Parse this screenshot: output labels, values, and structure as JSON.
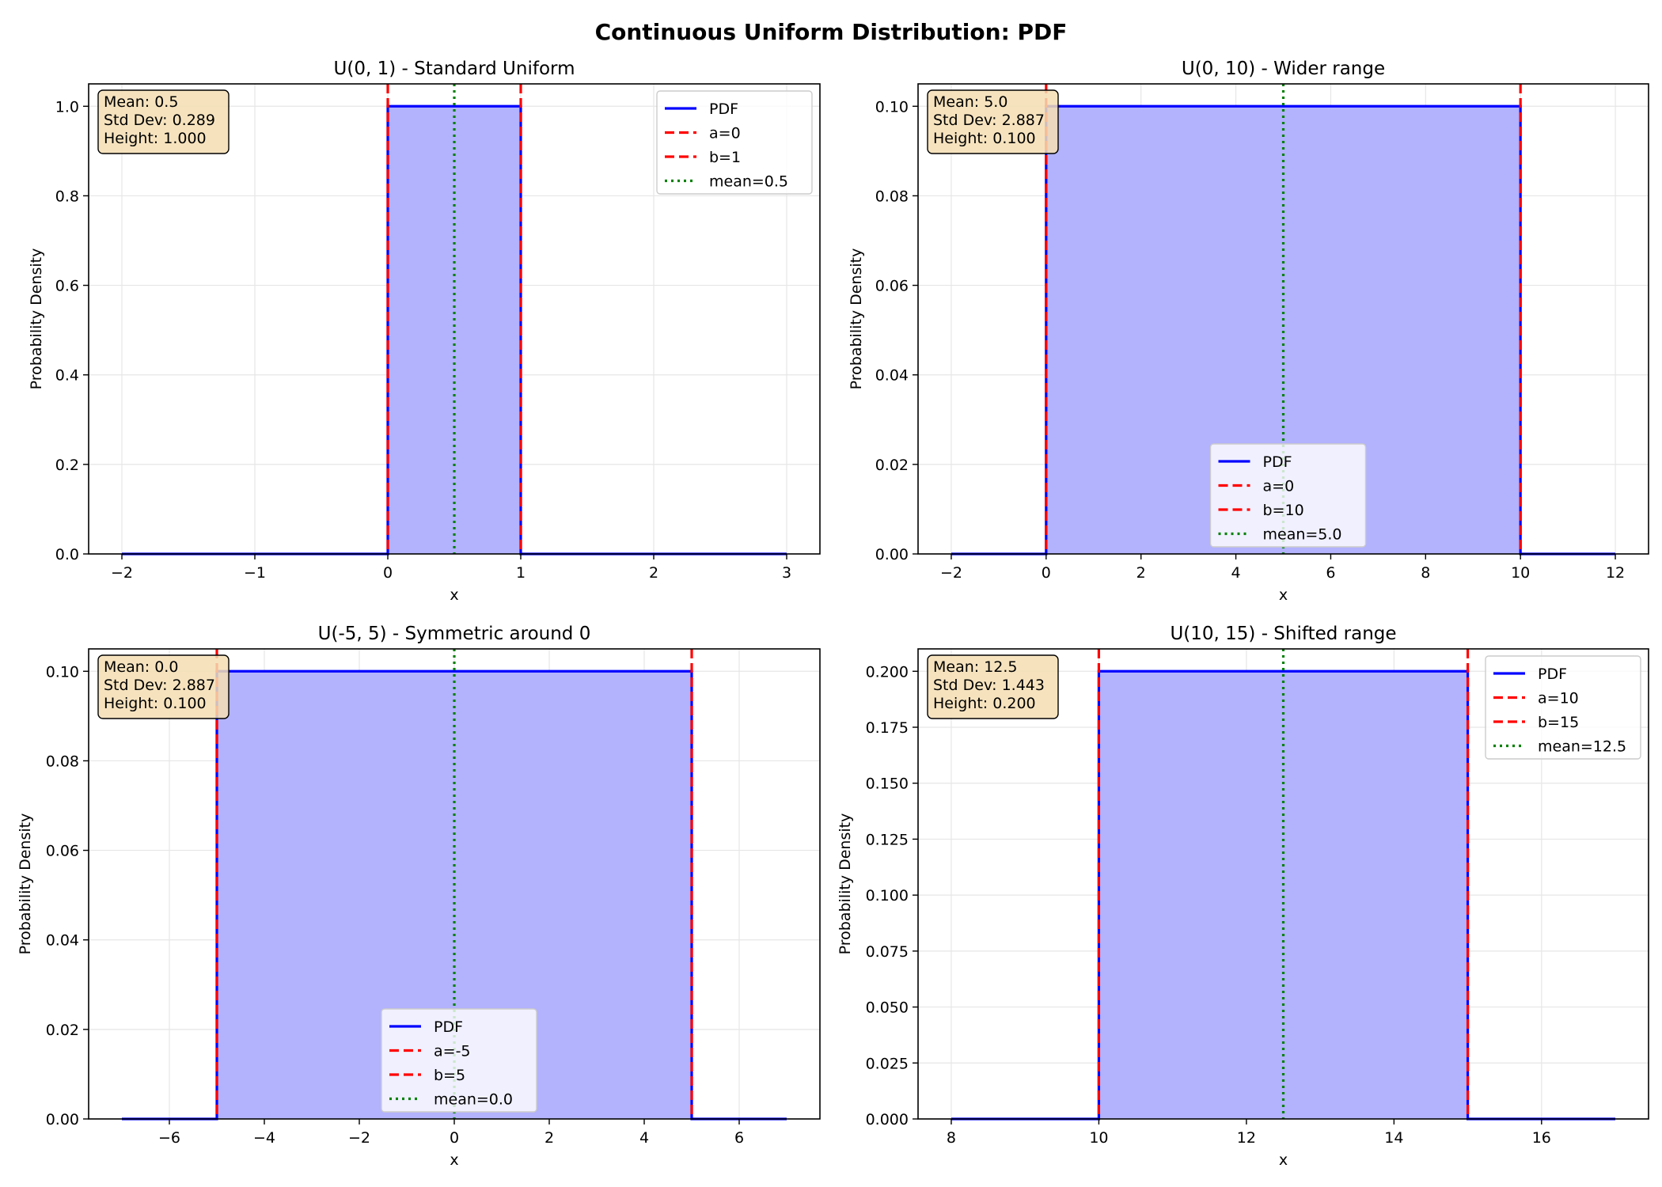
{
  "figure": {
    "title": "Continuous Uniform Distribution: PDF"
  },
  "colors": {
    "pdf_line": "#0000ff",
    "fill": "#b2b2fd",
    "bound_line": "#ff0000",
    "mean_line": "#008000",
    "grid": "#e6e6e6",
    "info_box_bg": "#f5deb3",
    "legend_bg": "#ffffff"
  },
  "chart_data": [
    {
      "type": "line",
      "title": "U(0, 1) - Standard Uniform",
      "xlabel": "x",
      "ylabel": "Probability Density",
      "xlim": [
        -2.25,
        3.25
      ],
      "ylim": [
        0,
        1.05
      ],
      "xticks": [
        -2,
        -1,
        0,
        1,
        2,
        3
      ],
      "xtick_labels": [
        "−2",
        "−1",
        "0",
        "1",
        "2",
        "3"
      ],
      "yticks": [
        0,
        0.2,
        0.4,
        0.6,
        0.8,
        1.0
      ],
      "ytick_labels": [
        "0.0",
        "0.2",
        "0.4",
        "0.6",
        "0.8",
        "1.0"
      ],
      "grid": true,
      "legend_position": "upper right",
      "pdf": {
        "x": [
          -2,
          0,
          0,
          1,
          1,
          3
        ],
        "y": [
          0,
          0,
          1.0,
          1.0,
          0,
          0
        ]
      },
      "a": 0,
      "b": 1,
      "mean": 0.5,
      "height": 1.0,
      "info": [
        "Mean: 0.5",
        "Std Dev: 0.289",
        "Height: 1.000"
      ],
      "legend": [
        "PDF",
        "a=0",
        "b=1",
        "mean=0.5"
      ]
    },
    {
      "type": "line",
      "title": "U(0, 10) - Wider range",
      "xlabel": "x",
      "ylabel": "Probability Density",
      "xlim": [
        -2.7,
        12.7
      ],
      "ylim": [
        0,
        0.105
      ],
      "xticks": [
        -2,
        0,
        2,
        4,
        6,
        8,
        10,
        12
      ],
      "xtick_labels": [
        "−2",
        "0",
        "2",
        "4",
        "6",
        "8",
        "10",
        "12"
      ],
      "yticks": [
        0,
        0.02,
        0.04,
        0.06,
        0.08,
        0.1
      ],
      "ytick_labels": [
        "0.00",
        "0.02",
        "0.04",
        "0.06",
        "0.08",
        "0.10"
      ],
      "grid": true,
      "legend_position": "lower center",
      "pdf": {
        "x": [
          -2,
          0,
          0,
          10,
          10,
          12
        ],
        "y": [
          0,
          0,
          0.1,
          0.1,
          0,
          0
        ]
      },
      "a": 0,
      "b": 10,
      "mean": 5.0,
      "height": 0.1,
      "info": [
        "Mean: 5.0",
        "Std Dev: 2.887",
        "Height: 0.100"
      ],
      "legend": [
        "PDF",
        "a=0",
        "b=10",
        "mean=5.0"
      ]
    },
    {
      "type": "line",
      "title": "U(-5, 5) - Symmetric around 0",
      "xlabel": "x",
      "ylabel": "Probability Density",
      "xlim": [
        -7.7,
        7.7
      ],
      "ylim": [
        0,
        0.105
      ],
      "xticks": [
        -6,
        -4,
        -2,
        0,
        2,
        4,
        6
      ],
      "xtick_labels": [
        "−6",
        "−4",
        "−2",
        "0",
        "2",
        "4",
        "6"
      ],
      "yticks": [
        0,
        0.02,
        0.04,
        0.06,
        0.08,
        0.1
      ],
      "ytick_labels": [
        "0.00",
        "0.02",
        "0.04",
        "0.06",
        "0.08",
        "0.10"
      ],
      "grid": true,
      "legend_position": "lower center",
      "pdf": {
        "x": [
          -7,
          -5,
          -5,
          5,
          5,
          7
        ],
        "y": [
          0,
          0,
          0.1,
          0.1,
          0,
          0
        ]
      },
      "a": -5,
      "b": 5,
      "mean": 0.0,
      "height": 0.1,
      "info": [
        "Mean: 0.0",
        "Std Dev: 2.887",
        "Height: 0.100"
      ],
      "legend": [
        "PDF",
        "a=-5",
        "b=5",
        "mean=0.0"
      ]
    },
    {
      "type": "line",
      "title": "U(10, 15) - Shifted range",
      "xlabel": "x",
      "ylabel": "Probability Density",
      "xlim": [
        7.55,
        17.45
      ],
      "ylim": [
        0,
        0.21
      ],
      "xticks": [
        8,
        10,
        12,
        14,
        16
      ],
      "xtick_labels": [
        "8",
        "10",
        "12",
        "14",
        "16"
      ],
      "yticks": [
        0,
        0.025,
        0.05,
        0.075,
        0.1,
        0.125,
        0.15,
        0.175,
        0.2
      ],
      "ytick_labels": [
        "0.000",
        "0.025",
        "0.050",
        "0.075",
        "0.100",
        "0.125",
        "0.150",
        "0.175",
        "0.200"
      ],
      "grid": true,
      "legend_position": "upper right",
      "pdf": {
        "x": [
          8,
          10,
          10,
          15,
          15,
          17
        ],
        "y": [
          0,
          0,
          0.2,
          0.2,
          0,
          0
        ]
      },
      "a": 10,
      "b": 15,
      "mean": 12.5,
      "height": 0.2,
      "info": [
        "Mean: 12.5",
        "Std Dev: 1.443",
        "Height: 0.200"
      ],
      "legend": [
        "PDF",
        "a=10",
        "b=15",
        "mean=12.5"
      ]
    }
  ]
}
